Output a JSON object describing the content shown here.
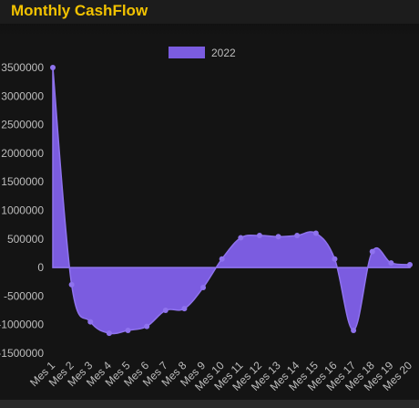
{
  "header": {
    "title": "Monthly CashFlow"
  },
  "colors": {
    "background": "#141414",
    "header_background": "#1c1c1c",
    "title": "#f2c200",
    "series_fill": "#7b5ce0",
    "series_line": "#8f73ee",
    "axis_text": "#bdbdbd",
    "zero_line": "#8a8a8a"
  },
  "chart_data": {
    "type": "area",
    "title": "",
    "xlabel": "",
    "ylabel": "",
    "categories": [
      "Mes 1",
      "Mes 2",
      "Mes 3",
      "Mes 4",
      "Mes 5",
      "Mes 6",
      "Mes 7",
      "Mes 8",
      "Mes 9",
      "Mes 10",
      "Mes 11",
      "Mes 12",
      "Mes 13",
      "Mes 14",
      "Mes 15",
      "Mes 16",
      "Mes 17",
      "Mes 18",
      "Mes 19",
      "Mes 20"
    ],
    "series": [
      {
        "name": "2022",
        "values": [
          3500000,
          -300000,
          -950000,
          -1150000,
          -1100000,
          -1030000,
          -750000,
          -720000,
          -350000,
          150000,
          520000,
          560000,
          540000,
          560000,
          600000,
          150000,
          -1100000,
          280000,
          80000,
          50000
        ]
      }
    ],
    "ylim": [
      -1500000,
      3700000
    ],
    "yticks": [
      -1500000,
      -1000000,
      -500000,
      0,
      500000,
      1000000,
      1500000,
      2000000,
      2500000,
      3000000,
      3500000
    ],
    "ytick_labels": [
      "-1500000",
      "-1000000",
      "-500000",
      "0",
      "500000",
      "1000000",
      "1500000",
      "2000000",
      "2500000",
      "3000000",
      "3500000"
    ],
    "grid": false,
    "legend": {
      "position": "top",
      "entries": [
        "2022"
      ]
    }
  }
}
